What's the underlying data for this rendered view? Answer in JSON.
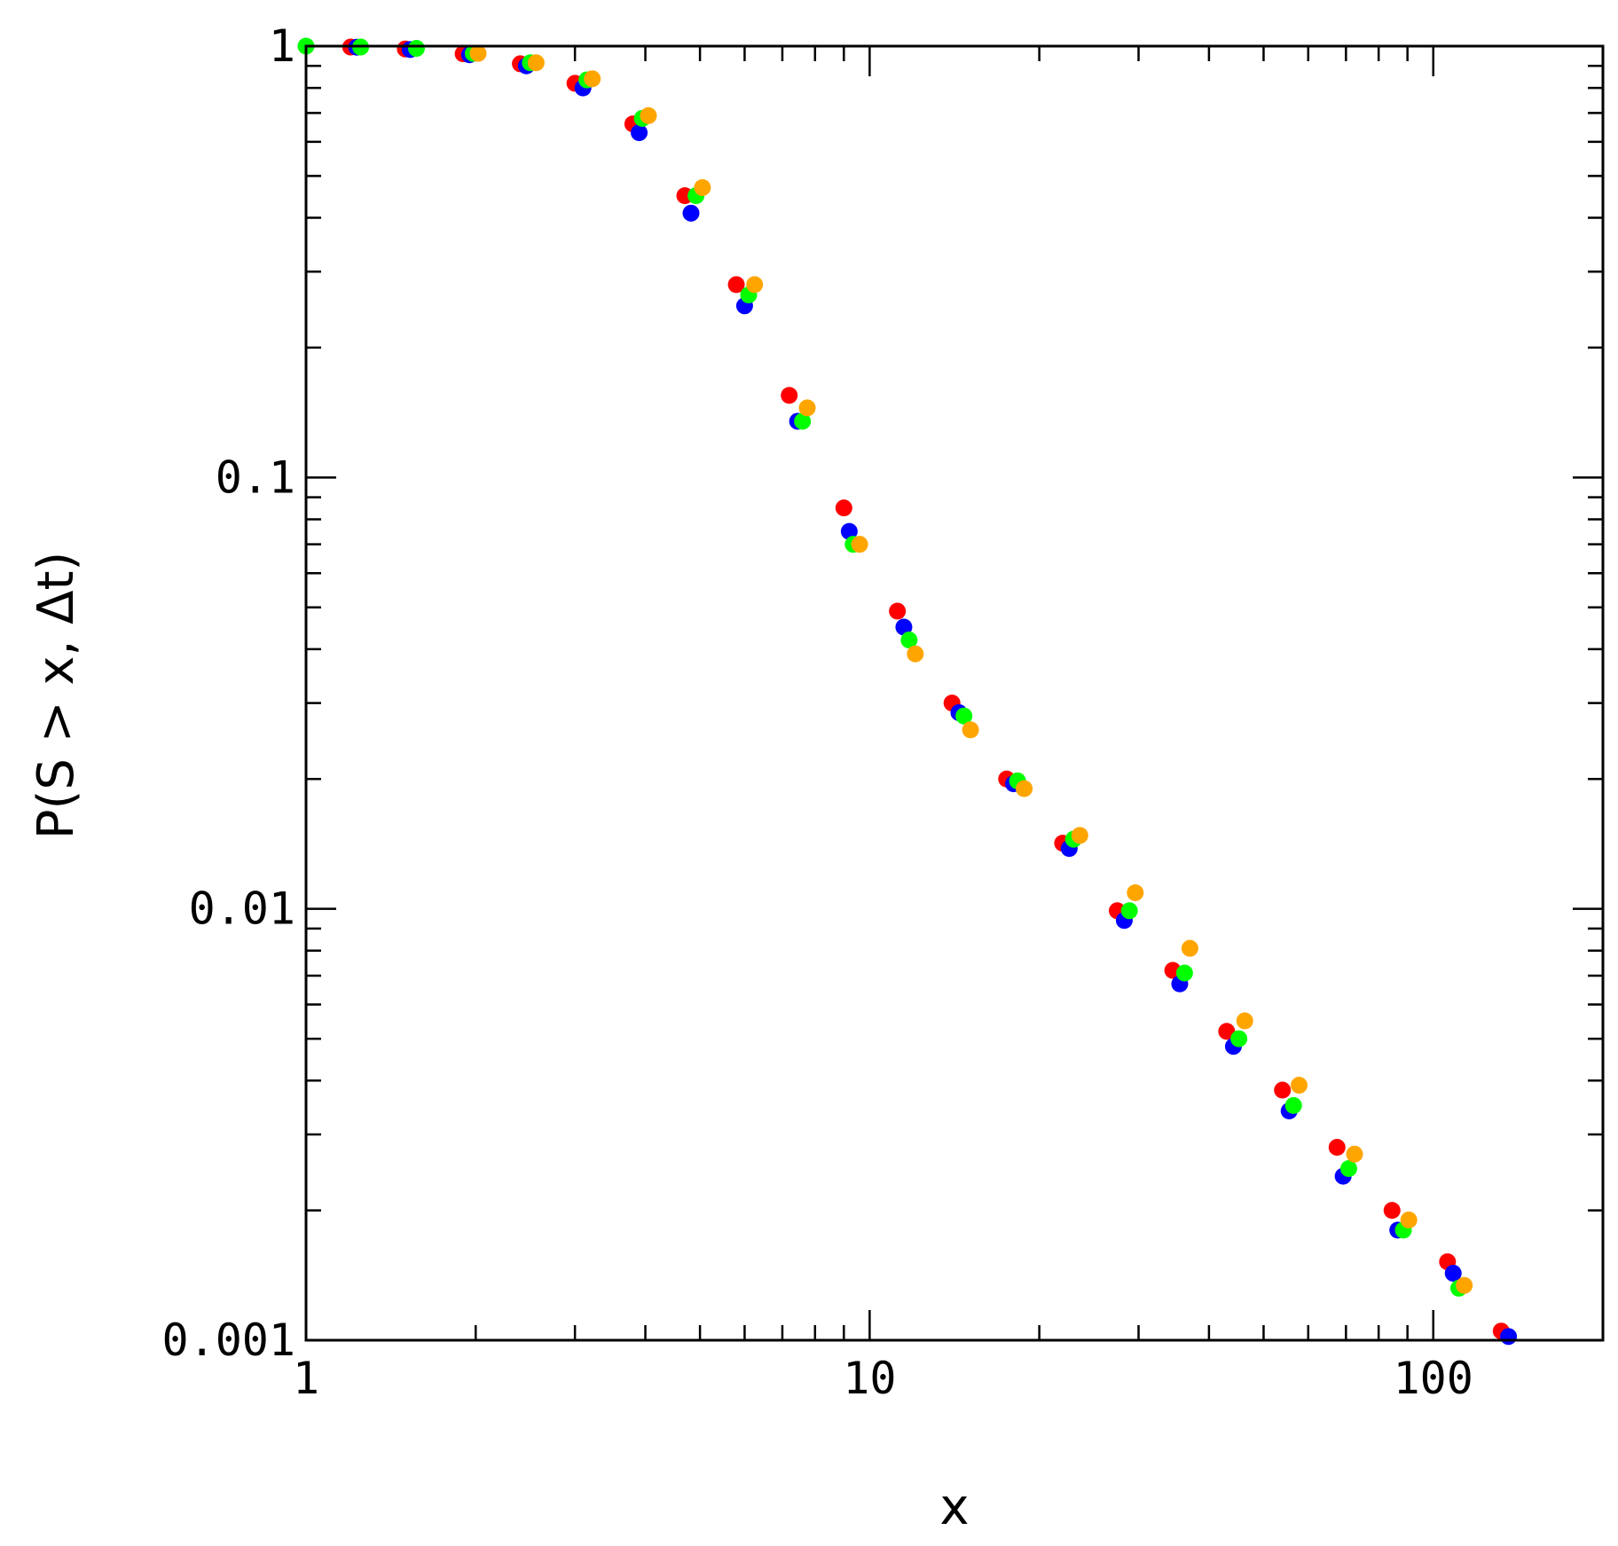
{
  "chart_data": {
    "type": "scatter",
    "title": "",
    "xlabel": "x",
    "ylabel": "P(S > x, Δt)",
    "xscale": "log",
    "yscale": "log",
    "xlim": [
      1,
      200
    ],
    "ylim": [
      0.001,
      1
    ],
    "grid": false,
    "legend": "none",
    "x_ticks": [
      {
        "value": 1,
        "label": "1"
      },
      {
        "value": 10,
        "label": "10"
      },
      {
        "value": 100,
        "label": "100"
      }
    ],
    "y_ticks": [
      {
        "value": 0.001,
        "label": "0.001"
      },
      {
        "value": 0.01,
        "label": "0.01"
      },
      {
        "value": 0.1,
        "label": "0.1"
      },
      {
        "value": 1,
        "label": "1"
      }
    ],
    "series": [
      {
        "color": "#ff0000",
        "points": [
          [
            1.2,
            0.995
          ],
          [
            1.5,
            0.985
          ],
          [
            1.9,
            0.96
          ],
          [
            2.4,
            0.91
          ],
          [
            3.0,
            0.82
          ],
          [
            3.8,
            0.66
          ],
          [
            4.7,
            0.45
          ],
          [
            5.8,
            0.28
          ],
          [
            7.2,
            0.155
          ],
          [
            9.0,
            0.085
          ],
          [
            11.2,
            0.049
          ],
          [
            14.0,
            0.03
          ],
          [
            17.5,
            0.02
          ],
          [
            22.0,
            0.0142
          ],
          [
            27.5,
            0.0099
          ],
          [
            34.5,
            0.0072
          ],
          [
            43.0,
            0.0052
          ],
          [
            54.0,
            0.0038
          ],
          [
            67.5,
            0.0028
          ],
          [
            84.5,
            0.002
          ],
          [
            106,
            0.00152
          ],
          [
            132,
            0.00105
          ]
        ]
      },
      {
        "color": "#0000ff",
        "points": [
          [
            1.23,
            0.994
          ],
          [
            1.53,
            0.982
          ],
          [
            1.95,
            0.955
          ],
          [
            2.46,
            0.9
          ],
          [
            3.1,
            0.8
          ],
          [
            3.9,
            0.63
          ],
          [
            4.82,
            0.41
          ],
          [
            6.0,
            0.25
          ],
          [
            7.45,
            0.135
          ],
          [
            9.2,
            0.075
          ],
          [
            11.5,
            0.045
          ],
          [
            14.4,
            0.0285
          ],
          [
            18.0,
            0.0195
          ],
          [
            22.6,
            0.0138
          ],
          [
            28.3,
            0.0094
          ],
          [
            35.5,
            0.0067
          ],
          [
            44.2,
            0.0048
          ],
          [
            55.5,
            0.0034
          ],
          [
            69.2,
            0.0024
          ],
          [
            86.5,
            0.0018
          ],
          [
            108.5,
            0.00143
          ],
          [
            136,
            0.00102
          ]
        ]
      },
      {
        "color": "#00ff00",
        "points": [
          [
            1.0,
            1.0
          ],
          [
            1.25,
            0.995
          ],
          [
            1.57,
            0.988
          ],
          [
            1.98,
            0.962
          ],
          [
            2.5,
            0.915
          ],
          [
            3.15,
            0.835
          ],
          [
            3.95,
            0.68
          ],
          [
            4.92,
            0.45
          ],
          [
            6.1,
            0.265
          ],
          [
            7.6,
            0.135
          ],
          [
            9.35,
            0.07
          ],
          [
            11.75,
            0.042
          ],
          [
            14.7,
            0.028
          ],
          [
            18.3,
            0.0198
          ],
          [
            23.0,
            0.0145
          ],
          [
            28.9,
            0.0099
          ],
          [
            36.2,
            0.0071
          ],
          [
            45.2,
            0.005
          ],
          [
            56.5,
            0.0035
          ],
          [
            70.8,
            0.0025
          ],
          [
            88.5,
            0.0018
          ],
          [
            111,
            0.00132
          ]
        ]
      },
      {
        "color": "#ffa500",
        "points": [
          [
            2.02,
            0.962
          ],
          [
            2.56,
            0.915
          ],
          [
            3.22,
            0.84
          ],
          [
            4.05,
            0.69
          ],
          [
            5.05,
            0.47
          ],
          [
            6.25,
            0.28
          ],
          [
            7.75,
            0.145
          ],
          [
            9.6,
            0.07
          ],
          [
            12.05,
            0.039
          ],
          [
            15.1,
            0.026
          ],
          [
            18.8,
            0.019
          ],
          [
            23.6,
            0.0148
          ],
          [
            29.6,
            0.0109
          ],
          [
            37.0,
            0.0081
          ],
          [
            46.3,
            0.0055
          ],
          [
            57.8,
            0.0039
          ],
          [
            72.5,
            0.0027
          ],
          [
            90.5,
            0.0019
          ],
          [
            113.5,
            0.00134
          ]
        ]
      }
    ]
  }
}
